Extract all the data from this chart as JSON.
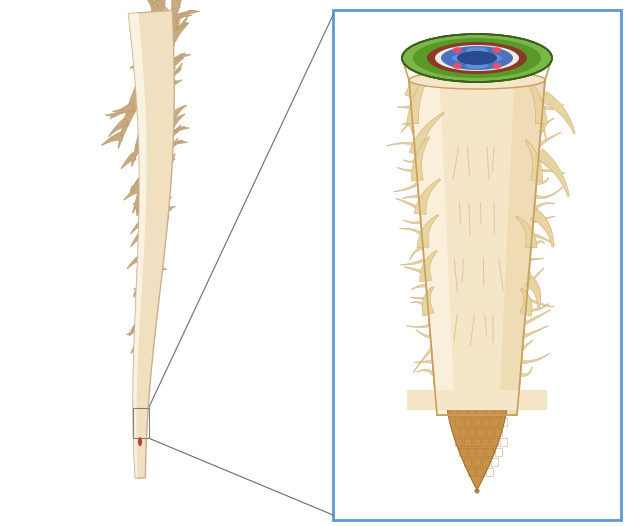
{
  "bg_color": "#ffffff",
  "root_light": "#f5e6c8",
  "root_mid": "#ecd5a8",
  "root_dark": "#d4b87a",
  "root_outline": "#c8a060",
  "branch_color": "#c8aa80",
  "branch_outline": "#b09060",
  "hair_color": "#e8d4a0",
  "hair_outline": "#c8a878",
  "box_border": "#5b9bd5",
  "cross_green_outer": "#7ab648",
  "cross_green_line": "#4a8020",
  "cross_brown": "#8B3a2a",
  "cross_white": "#f0ede0",
  "cross_blue_dark": "#2a4a90",
  "cross_blue_mid": "#4a72c0",
  "cross_blue_light": "#6090d8",
  "cross_pink": "#e05070",
  "cross_red": "#c03050",
  "cap_color": "#c8924a",
  "cap_outline": "#a07030",
  "cap_dark": "#a07840",
  "line_color": "#607080",
  "tap_color": "#f0e0c0",
  "tap_outline": "#c8b090",
  "zoom_box": "#808080"
}
